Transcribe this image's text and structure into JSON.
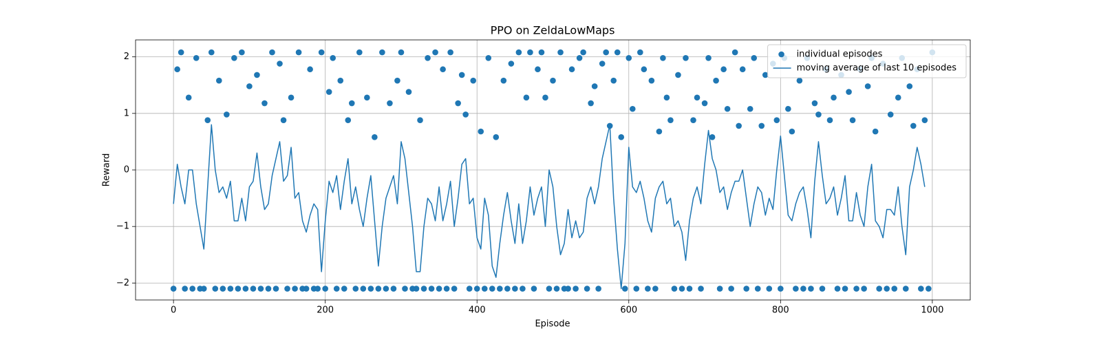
{
  "chart_data": {
    "type": "line",
    "title": "PPO on ZeldaLowMaps",
    "x_label": "Episode",
    "y_label": "Reward",
    "xlim": [
      -50,
      1050
    ],
    "ylim": [
      -2.3,
      2.3
    ],
    "xticks": [
      0,
      200,
      400,
      600,
      800,
      1000
    ],
    "yticks": [
      {
        "value": -2,
        "label": "−2"
      },
      {
        "value": -1,
        "label": "−1"
      },
      0,
      1,
      2
    ],
    "grid": true,
    "legend": "upper right",
    "series": [
      {
        "name": "individual episodes",
        "type": "scatter",
        "color": "#1f77b4",
        "x": [
          0,
          5,
          10,
          15,
          20,
          25,
          30,
          35,
          40,
          45,
          50,
          55,
          60,
          65,
          70,
          75,
          80,
          85,
          90,
          95,
          100,
          105,
          110,
          115,
          120,
          125,
          130,
          135,
          140,
          145,
          150,
          155,
          160,
          165,
          170,
          175,
          180,
          185,
          190,
          195,
          200,
          205,
          210,
          215,
          220,
          225,
          230,
          235,
          240,
          245,
          250,
          255,
          260,
          265,
          270,
          275,
          280,
          285,
          290,
          295,
          300,
          305,
          310,
          315,
          320,
          325,
          330,
          335,
          340,
          345,
          350,
          355,
          360,
          365,
          370,
          375,
          380,
          385,
          390,
          395,
          400,
          405,
          410,
          415,
          420,
          425,
          430,
          435,
          440,
          445,
          450,
          455,
          460,
          465,
          470,
          475,
          480,
          485,
          490,
          495,
          500,
          505,
          510,
          515,
          520,
          525,
          530,
          535,
          540,
          545,
          550,
          555,
          560,
          565,
          570,
          575,
          580,
          585,
          590,
          595,
          600,
          605,
          610,
          615,
          620,
          625,
          630,
          635,
          640,
          645,
          650,
          655,
          660,
          665,
          670,
          675,
          680,
          685,
          690,
          695,
          700,
          705,
          710,
          715,
          720,
          725,
          730,
          735,
          740,
          745,
          750,
          755,
          760,
          765,
          770,
          775,
          780,
          785,
          790,
          795,
          800,
          805,
          810,
          815,
          820,
          825,
          830,
          835,
          840,
          845,
          850,
          855,
          860,
          865,
          870,
          875,
          880,
          885,
          890,
          895,
          900,
          905,
          910,
          915,
          920,
          925,
          930,
          935,
          940,
          945,
          950,
          955,
          960,
          965,
          970,
          975,
          980,
          985,
          990,
          995,
          1000
        ],
        "values": [
          -2.1,
          1.78,
          2.08,
          -2.1,
          1.28,
          -2.1,
          1.98,
          -2.1,
          -2.1,
          0.88,
          2.08,
          -2.1,
          1.58,
          -2.1,
          0.98,
          -2.1,
          1.98,
          -2.1,
          2.08,
          -2.1,
          1.48,
          -2.1,
          1.68,
          -2.1,
          1.18,
          -2.1,
          2.08,
          -2.1,
          1.88,
          0.88,
          -2.1,
          1.28,
          -2.1,
          2.08,
          -2.1,
          -2.1,
          1.78,
          -2.1,
          -2.1,
          2.08,
          -2.1,
          1.38,
          1.98,
          -2.1,
          1.58,
          -2.1,
          0.88,
          1.18,
          -2.1,
          2.08,
          -2.1,
          1.28,
          -2.1,
          0.58,
          -2.1,
          2.08,
          -2.1,
          1.18,
          -2.1,
          1.58,
          2.08,
          -2.1,
          1.38,
          -2.1,
          -2.1,
          0.88,
          -2.1,
          1.98,
          -2.1,
          2.08,
          -2.1,
          1.78,
          -2.1,
          2.08,
          -2.1,
          1.18,
          1.68,
          0.98,
          -2.1,
          1.58,
          -2.1,
          0.68,
          -2.1,
          1.98,
          -2.1,
          0.58,
          -2.1,
          1.58,
          -2.1,
          1.88,
          -2.1,
          2.08,
          -2.1,
          1.28,
          2.08,
          -2.1,
          1.78,
          2.08,
          1.28,
          -2.1,
          1.58,
          -2.1,
          2.08,
          -2.1,
          -2.1,
          1.78,
          -2.1,
          1.98,
          2.08,
          -2.1,
          1.18,
          1.48,
          -2.1,
          1.88,
          2.08,
          0.78,
          1.58,
          2.08,
          0.58,
          -2.1,
          1.98,
          1.08,
          -2.1,
          2.08,
          1.78,
          -2.1,
          1.58,
          -2.1,
          0.68,
          1.98,
          1.28,
          0.88,
          -2.1,
          1.68,
          -2.1,
          1.98,
          -2.1,
          0.88,
          1.28,
          -2.1,
          1.18,
          1.98,
          0.58,
          1.58,
          -2.1,
          1.78,
          1.08,
          -2.1,
          2.08,
          0.78,
          1.78,
          -2.1,
          1.08,
          1.98,
          -2.1,
          0.78,
          1.68,
          -2.1,
          1.88,
          0.88,
          -2.1,
          1.98,
          1.08,
          0.68,
          -2.1,
          1.58,
          -2.1,
          1.98,
          -2.1,
          1.18,
          0.98,
          -2.1,
          1.78,
          0.88,
          1.28,
          -2.1,
          1.68,
          -2.1,
          1.38,
          0.88,
          -2.1,
          1.78,
          -2.1,
          1.48,
          1.98,
          0.68,
          -2.1,
          1.88,
          -2.1,
          0.98,
          -2.1,
          1.28,
          1.98,
          -2.1,
          1.48,
          0.78,
          1.78,
          -2.1,
          0.88,
          -2.1,
          2.08
        ]
      },
      {
        "name": "moving average of last 10 episodes",
        "type": "line",
        "color": "#1f77b4",
        "x": [
          0,
          5,
          10,
          15,
          20,
          25,
          30,
          35,
          40,
          45,
          50,
          55,
          60,
          65,
          70,
          75,
          80,
          85,
          90,
          95,
          100,
          105,
          110,
          115,
          120,
          125,
          130,
          135,
          140,
          145,
          150,
          155,
          160,
          165,
          170,
          175,
          180,
          185,
          190,
          195,
          200,
          205,
          210,
          215,
          220,
          225,
          230,
          235,
          240,
          245,
          250,
          255,
          260,
          265,
          270,
          275,
          280,
          285,
          290,
          295,
          300,
          305,
          310,
          315,
          320,
          325,
          330,
          335,
          340,
          345,
          350,
          355,
          360,
          365,
          370,
          375,
          380,
          385,
          390,
          395,
          400,
          405,
          410,
          415,
          420,
          425,
          430,
          435,
          440,
          445,
          450,
          455,
          460,
          465,
          470,
          475,
          480,
          485,
          490,
          495,
          500,
          505,
          510,
          515,
          520,
          525,
          530,
          535,
          540,
          545,
          550,
          555,
          560,
          565,
          570,
          575,
          580,
          585,
          590,
          595,
          600,
          605,
          610,
          615,
          620,
          625,
          630,
          635,
          640,
          645,
          650,
          655,
          660,
          665,
          670,
          675,
          680,
          685,
          690,
          695,
          700,
          705,
          710,
          715,
          720,
          725,
          730,
          735,
          740,
          745,
          750,
          755,
          760,
          765,
          770,
          775,
          780,
          785,
          790,
          795,
          800,
          805,
          810,
          815,
          820,
          825,
          830,
          835,
          840,
          845,
          850,
          855,
          860,
          865,
          870,
          875,
          880,
          885,
          890,
          895,
          900,
          905,
          910,
          915,
          920,
          925,
          930,
          935,
          940,
          945,
          950,
          955,
          960,
          965,
          970,
          975,
          980,
          985,
          990
        ],
        "values": [
          -0.6,
          0.1,
          -0.3,
          -0.6,
          0.0,
          0.0,
          -0.6,
          -1.0,
          -1.4,
          -0.3,
          0.8,
          0.0,
          -0.4,
          -0.3,
          -0.5,
          -0.2,
          -0.9,
          -0.9,
          -0.5,
          -0.9,
          -0.3,
          -0.2,
          0.3,
          -0.3,
          -0.7,
          -0.6,
          -0.1,
          0.2,
          0.5,
          -0.2,
          -0.1,
          0.4,
          -0.5,
          -0.4,
          -0.9,
          -1.1,
          -0.8,
          -0.6,
          -0.7,
          -1.8,
          -0.9,
          -0.2,
          -0.4,
          -0.1,
          -0.7,
          -0.2,
          0.2,
          -0.6,
          -0.3,
          -0.7,
          -1.0,
          -0.5,
          -0.1,
          -0.9,
          -1.7,
          -1.0,
          -0.5,
          -0.3,
          -0.1,
          -0.6,
          0.5,
          0.2,
          -0.4,
          -1.0,
          -1.8,
          -1.8,
          -1.0,
          -0.5,
          -0.6,
          -0.9,
          -0.3,
          -0.9,
          -0.6,
          -0.2,
          -1.0,
          -0.5,
          0.1,
          0.2,
          -0.6,
          -0.5,
          -1.2,
          -1.4,
          -0.5,
          -0.8,
          -1.7,
          -1.9,
          -1.3,
          -0.8,
          -0.4,
          -0.9,
          -1.3,
          -0.6,
          -1.3,
          -0.9,
          -0.3,
          -0.8,
          -0.5,
          -0.3,
          -1.0,
          0.0,
          -0.3,
          -1.0,
          -1.5,
          -1.3,
          -0.7,
          -1.2,
          -0.9,
          -1.2,
          -1.1,
          -0.5,
          -0.3,
          -0.6,
          -0.3,
          0.2,
          0.5,
          0.8,
          -0.5,
          -1.4,
          -2.1,
          -1.3,
          0.4,
          -0.3,
          -0.4,
          -0.2,
          -0.5,
          -0.9,
          -1.1,
          -0.5,
          -0.3,
          -0.2,
          -0.6,
          -0.5,
          -1.0,
          -0.9,
          -1.1,
          -1.6,
          -0.9,
          -0.5,
          -0.3,
          -0.6,
          0.1,
          0.7,
          0.2,
          0.0,
          -0.4,
          -0.3,
          -0.7,
          -0.4,
          -0.2,
          -0.2,
          0.0,
          -0.5,
          -1.0,
          -0.6,
          -0.3,
          -0.4,
          -0.8,
          -0.5,
          -0.7,
          0.0,
          0.6,
          -0.1,
          -0.8,
          -0.9,
          -0.6,
          -0.4,
          -0.3,
          -0.7,
          -1.2,
          -0.2,
          0.5,
          -0.1,
          -0.6,
          -0.5,
          -0.3,
          -0.8,
          -0.5,
          -0.1,
          -0.9,
          -0.9,
          -0.4,
          -0.8,
          -1.0,
          -0.3,
          0.1,
          -0.9,
          -1.0,
          -1.2,
          -0.7,
          -0.7,
          -0.8,
          -0.3,
          -1.0,
          -1.5,
          -0.3,
          0.0,
          0.4,
          0.1,
          -0.3
        ]
      }
    ]
  }
}
